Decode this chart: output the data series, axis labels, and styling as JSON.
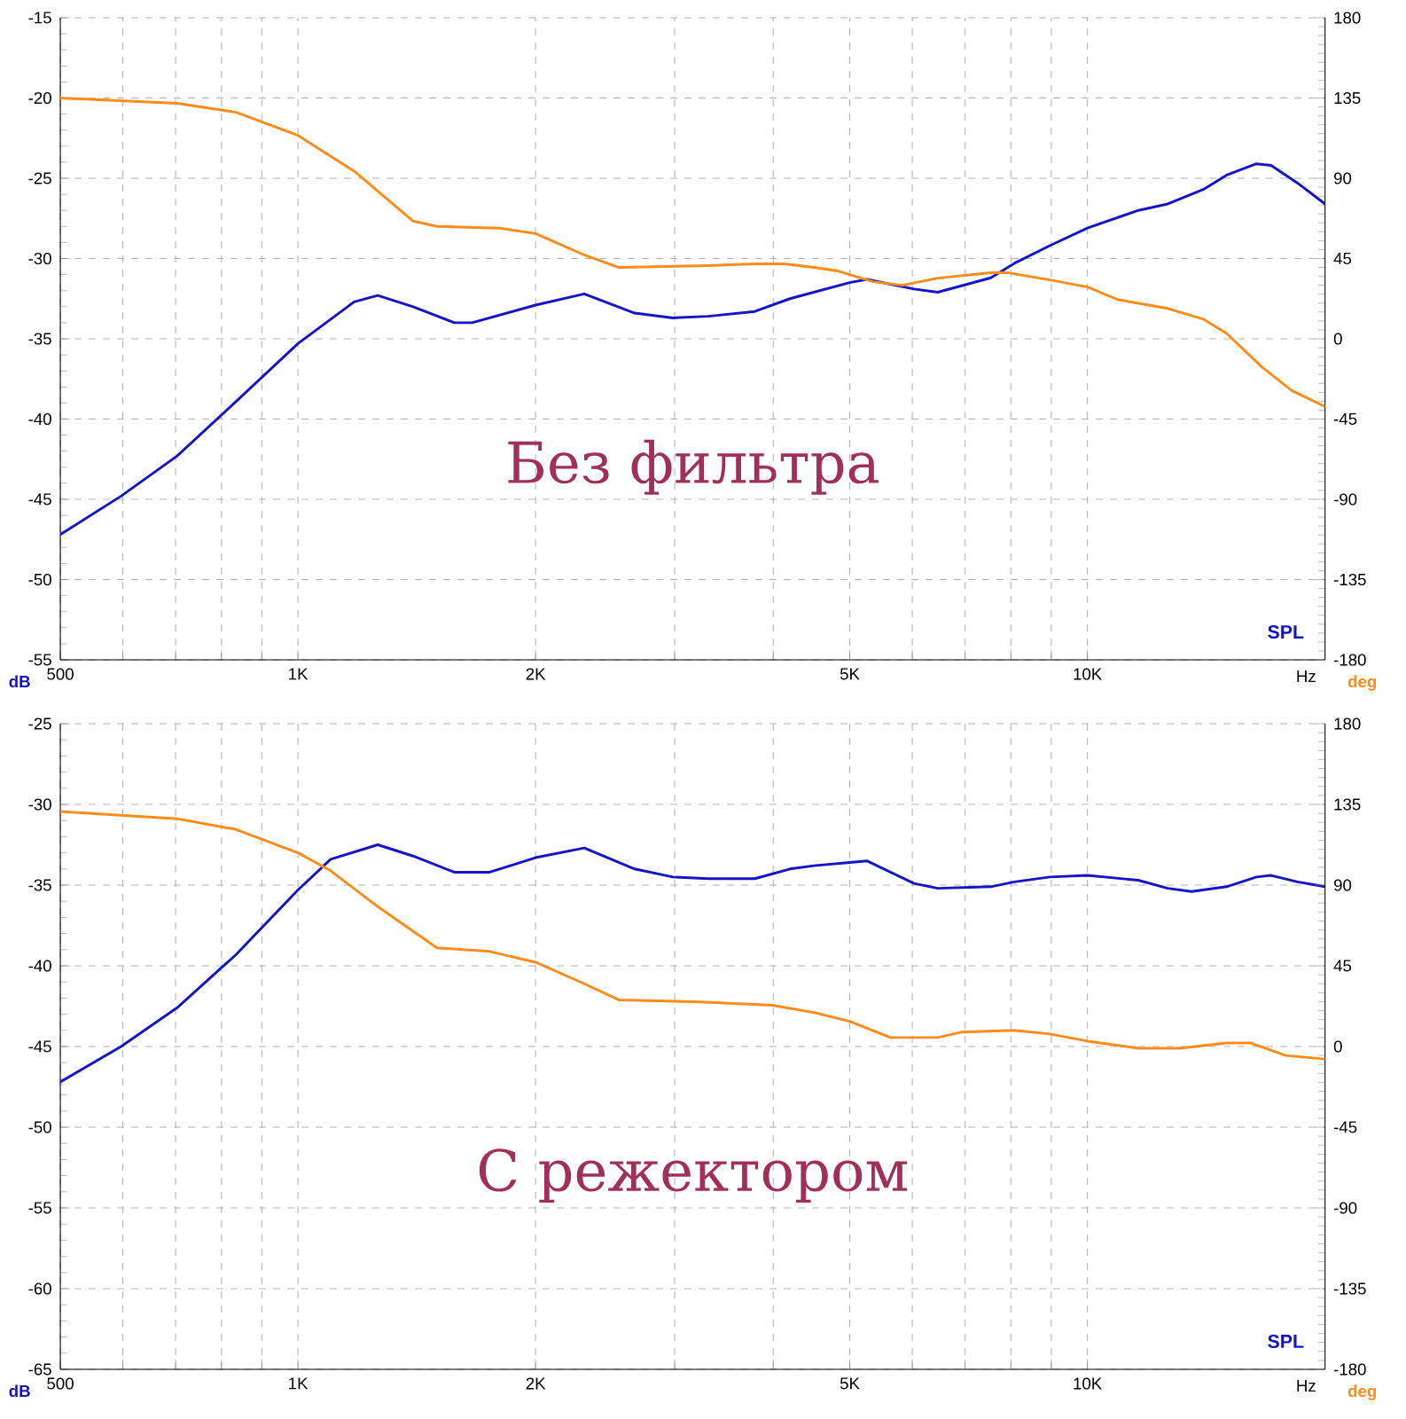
{
  "chart_data": [
    {
      "type": "line",
      "title": "Без фильтра",
      "xlabel": "Hz",
      "ylabel": "dB",
      "y2label": "deg",
      "log": "x",
      "grid": true,
      "legend": "bottom right",
      "xlim": [
        500,
        20000
      ],
      "ylim": [
        -55,
        -15
      ],
      "y2lim": [
        -180,
        180
      ],
      "xticks": [
        500,
        {
          "value": 600,
          "label": null
        },
        {
          "value": 700,
          "label": null
        },
        {
          "value": 800,
          "label": null
        },
        {
          "value": 900,
          "label": null
        },
        {
          "value": 1000,
          "label": "1K"
        },
        {
          "value": 2000,
          "label": "2K"
        },
        {
          "value": 3000,
          "label": null
        },
        {
          "value": 4000,
          "label": null
        },
        {
          "value": 5000,
          "label": "5K"
        },
        {
          "value": 6000,
          "label": null
        },
        {
          "value": 7000,
          "label": null
        },
        {
          "value": 8000,
          "label": null
        },
        {
          "value": 9000,
          "label": null
        },
        {
          "value": 10000,
          "label": "10K"
        }
      ],
      "yticks": [
        -55,
        -50,
        -45,
        -40,
        -35,
        -30,
        -25,
        -20,
        -15
      ],
      "y2ticks": [
        -180,
        -135,
        -90,
        -45,
        0,
        45,
        90,
        135,
        180
      ],
      "series": [
        {
          "name": "SPL",
          "color": "#1414c8",
          "x": [
            500,
            597,
            703,
            835,
            1000,
            1178,
            1262,
            1399,
            1578,
            1662,
            2000,
            2305,
            2670,
            2985,
            3310,
            3790,
            4200,
            4502,
            5000,
            5255,
            6031,
            6463,
            7545,
            8080,
            8960,
            10000,
            11600,
            12640,
            14020,
            15010,
            16370,
            17090,
            18460,
            20000
          ],
          "values": [
            -47.2,
            -44.8,
            -42.3,
            -38.9,
            -35.3,
            -32.7,
            -32.3,
            -33.0,
            -34.0,
            -34.0,
            -32.9,
            -32.2,
            -33.4,
            -33.7,
            -33.6,
            -33.3,
            -32.5,
            -32.1,
            -31.5,
            -31.3,
            -31.9,
            -32.1,
            -31.2,
            -30.3,
            -29.2,
            -28.1,
            -27.0,
            -26.6,
            -25.7,
            -24.8,
            -24.1,
            -24.2,
            -25.3,
            -26.6
          ]
        },
        {
          "axis": "y2",
          "color": "#ff8c1a",
          "x": [
            500,
            703,
            835,
            1000,
            1178,
            1399,
            1500,
            1800,
            2000,
            2305,
            2550,
            3310,
            3790,
            4130,
            4502,
            4830,
            5350,
            5827,
            6463,
            7545,
            7945,
            8960,
            10000,
            10920,
            12640,
            14020,
            15010,
            16650,
            18150,
            20000
          ],
          "values": [
            135,
            132,
            127,
            114,
            94,
            66,
            63,
            62,
            59,
            47,
            40,
            41,
            42,
            42,
            40,
            38,
            32,
            30,
            34,
            37,
            37,
            33,
            29,
            22,
            17,
            11,
            3,
            -16,
            -29,
            -38
          ]
        }
      ]
    },
    {
      "type": "line",
      "title": "С режектором",
      "xlabel": "Hz",
      "ylabel": "dB",
      "y2label": "deg",
      "log": "x",
      "grid": true,
      "legend": "bottom right",
      "xlim": [
        500,
        20000
      ],
      "ylim": [
        -65,
        -25
      ],
      "y2lim": [
        -180,
        180
      ],
      "xticks": [
        500,
        {
          "value": 600,
          "label": null
        },
        {
          "value": 700,
          "label": null
        },
        {
          "value": 800,
          "label": null
        },
        {
          "value": 900,
          "label": null
        },
        {
          "value": 1000,
          "label": "1K"
        },
        {
          "value": 2000,
          "label": "2K"
        },
        {
          "value": 3000,
          "label": null
        },
        {
          "value": 4000,
          "label": null
        },
        {
          "value": 5000,
          "label": "5K"
        },
        {
          "value": 6000,
          "label": null
        },
        {
          "value": 7000,
          "label": null
        },
        {
          "value": 8000,
          "label": null
        },
        {
          "value": 9000,
          "label": null
        },
        {
          "value": 10000,
          "label": "10K"
        }
      ],
      "yticks": [
        -65,
        -60,
        -55,
        -50,
        -45,
        -40,
        -35,
        -30,
        -25
      ],
      "y2ticks": [
        -180,
        -135,
        -90,
        -45,
        0,
        45,
        90,
        135,
        180
      ],
      "series": [
        {
          "name": "SPL",
          "color": "#1414c8",
          "x": [
            500,
            597,
            703,
            835,
            1000,
            1100,
            1262,
            1399,
            1578,
            1750,
            2000,
            2305,
            2670,
            2985,
            3310,
            3790,
            4200,
            4502,
            5000,
            5255,
            6031,
            6463,
            7545,
            8080,
            8960,
            10000,
            11600,
            12640,
            13550,
            15010,
            16370,
            17090,
            18460,
            20000
          ],
          "values": [
            -47.2,
            -45.0,
            -42.6,
            -39.3,
            -35.3,
            -33.4,
            -32.5,
            -33.2,
            -34.2,
            -34.2,
            -33.3,
            -32.7,
            -34.0,
            -34.5,
            -34.6,
            -34.6,
            -34.0,
            -33.8,
            -33.6,
            -33.5,
            -34.9,
            -35.2,
            -35.1,
            -34.8,
            -34.5,
            -34.4,
            -34.7,
            -35.2,
            -35.4,
            -35.1,
            -34.5,
            -34.4,
            -34.8,
            -35.1
          ]
        },
        {
          "axis": "y2",
          "color": "#ff8c1a",
          "x": [
            500,
            703,
            835,
            1000,
            1100,
            1262,
            1500,
            1750,
            2000,
            2305,
            2550,
            3190,
            3990,
            4502,
            5000,
            5630,
            6463,
            6920,
            8080,
            8960,
            10000,
            11600,
            13090,
            15010,
            16080,
            17830,
            20000
          ],
          "values": [
            131,
            127,
            121,
            108,
            98,
            78,
            55,
            53,
            47,
            35,
            26,
            25,
            23,
            19,
            14,
            5,
            5,
            8,
            9,
            7,
            3,
            -1,
            -1,
            2,
            2,
            -5,
            -7
          ]
        }
      ]
    }
  ]
}
